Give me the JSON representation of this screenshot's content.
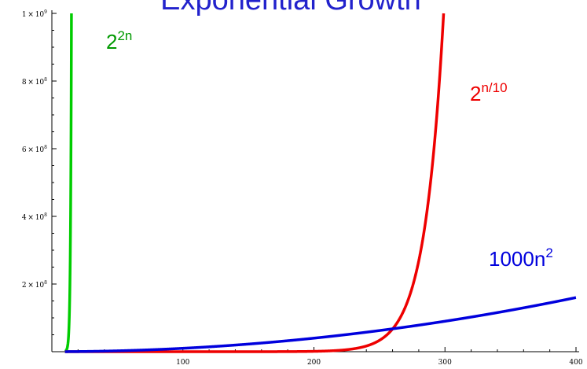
{
  "chart_data": {
    "type": "line",
    "title": "Exponential Growth",
    "xlabel": "",
    "ylabel": "",
    "xlim": [
      0,
      400
    ],
    "ylim": [
      0,
      1000000000
    ],
    "x_ticks": [
      {
        "value": 100,
        "label": "100"
      },
      {
        "value": 200,
        "label": "200"
      },
      {
        "value": 300,
        "label": "300"
      },
      {
        "value": 400,
        "label": "400"
      }
    ],
    "y_ticks": [
      {
        "value": 200000000,
        "mant": "2",
        "times": "×",
        "base": "10",
        "exp": "8"
      },
      {
        "value": 400000000,
        "mant": "4",
        "times": "×",
        "base": "10",
        "exp": "8"
      },
      {
        "value": 600000000,
        "mant": "6",
        "times": "×",
        "base": "10",
        "exp": "8"
      },
      {
        "value": 800000000,
        "mant": "8",
        "times": "×",
        "base": "10",
        "exp": "8"
      },
      {
        "value": 1000000000,
        "mant": "1",
        "times": "×",
        "base": "10",
        "exp": "9"
      }
    ],
    "grid": false,
    "series": [
      {
        "name_base": "2",
        "name_sup": "2n",
        "color": "#00cc00",
        "label_color": "#009900",
        "formula": "2^(2n)",
        "points": [
          [
            0,
            1
          ],
          [
            9,
            262144
          ],
          [
            12,
            16777216
          ],
          [
            13,
            67108864
          ],
          [
            14,
            268435456
          ],
          [
            14.5,
            536870912
          ],
          [
            14.95,
            1000000000
          ]
        ]
      },
      {
        "name_base": "2",
        "name_sup": "n/10",
        "color": "#ee0000",
        "label_color": "#ee0000",
        "formula": "2^(n/10)",
        "points": [
          [
            0,
            1
          ],
          [
            100,
            1024
          ],
          [
            200,
            1048576
          ],
          [
            230,
            8388608
          ],
          [
            250,
            33554432
          ],
          [
            260,
            67108864
          ],
          [
            270,
            134217728
          ],
          [
            280,
            268435456
          ],
          [
            290,
            536870912
          ],
          [
            299,
            1000000000
          ]
        ]
      },
      {
        "name_base": "1000n",
        "name_sup": "2",
        "color": "#0000dd",
        "label_color": "#0000dd",
        "formula": "1000n^2",
        "points": [
          [
            0,
            0
          ],
          [
            50,
            2500000
          ],
          [
            100,
            10000000
          ],
          [
            150,
            22500000
          ],
          [
            200,
            40000000
          ],
          [
            250,
            62500000
          ],
          [
            300,
            90000000
          ],
          [
            350,
            122500000
          ],
          [
            400,
            160000000
          ]
        ]
      }
    ]
  }
}
